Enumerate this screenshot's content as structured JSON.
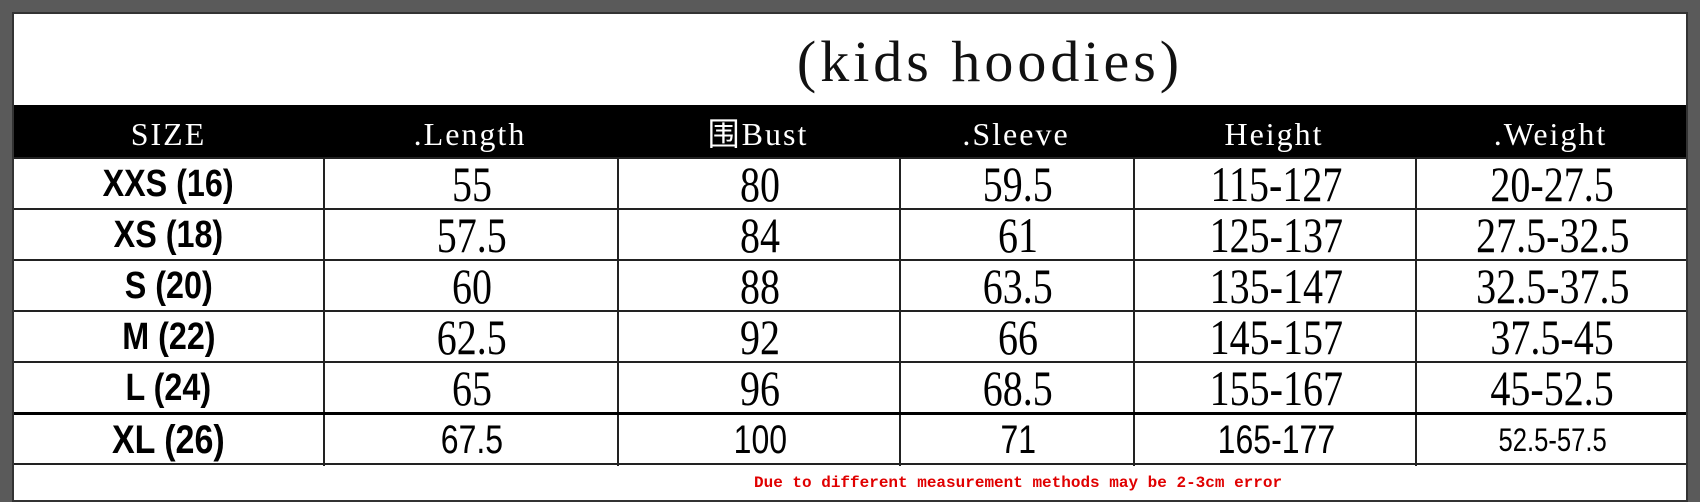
{
  "title": "(kids hoodies)",
  "headers": [
    "SIZE",
    ".Length",
    "围Bust",
    ".Sleeve",
    "Height",
    ".Weight"
  ],
  "rows": [
    [
      "XXS (16)",
      "55",
      "80",
      "59.5",
      "115-127",
      "20-27.5"
    ],
    [
      "XS (18)",
      "57.5",
      "84",
      "61",
      "125-137",
      "27.5-32.5"
    ],
    [
      "S (20)",
      "60",
      "88",
      "63.5",
      "135-147",
      "32.5-37.5"
    ],
    [
      "M (22)",
      "62.5",
      "92",
      "66",
      "145-157",
      "37.5-45"
    ],
    [
      "L (24)",
      "65",
      "96",
      "68.5",
      "155-167",
      "45-52.5"
    ],
    [
      "XL (26)",
      "67.5",
      "100",
      "71",
      "165-177",
      "52.5-57.5"
    ]
  ],
  "note": "Due to different measurement methods may be 2-3cm error",
  "colors": {
    "header_bg": "#000000",
    "note": "#e00000",
    "frame": "#5a5a5a"
  }
}
